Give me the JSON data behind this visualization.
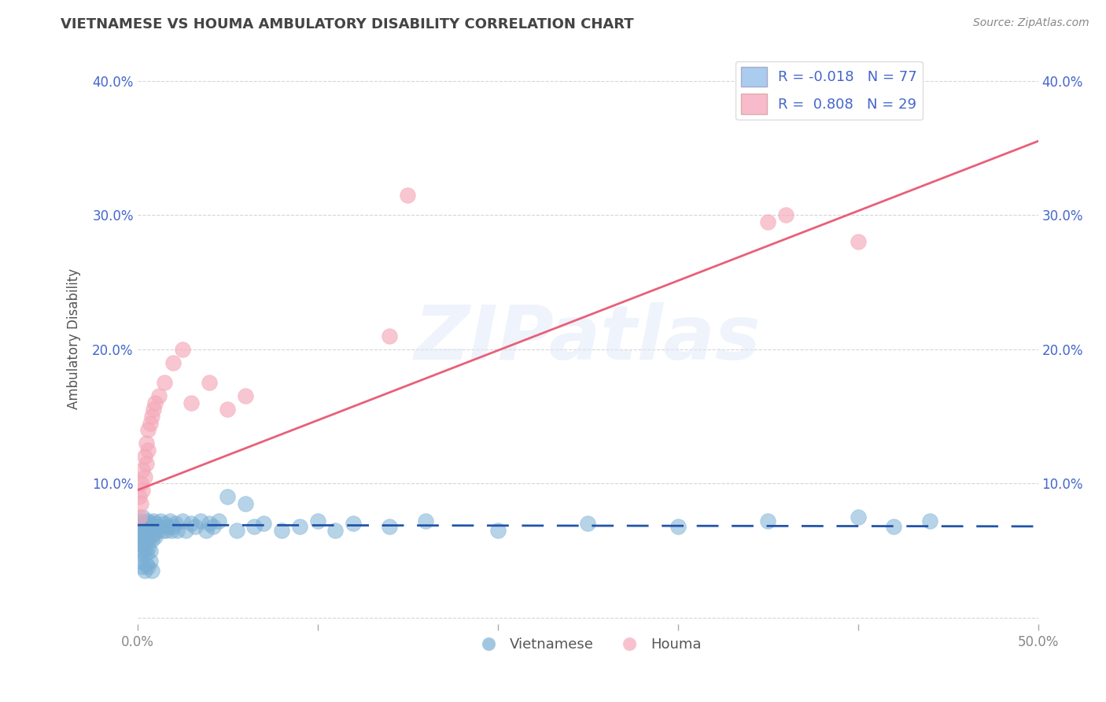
{
  "title": "VIETNAMESE VS HOUMA AMBULATORY DISABILITY CORRELATION CHART",
  "source": "Source: ZipAtlas.com",
  "ylabel": "Ambulatory Disability",
  "xlim": [
    0,
    0.5
  ],
  "ylim": [
    -0.005,
    0.42
  ],
  "xticks": [
    0.0,
    0.1,
    0.2,
    0.3,
    0.4,
    0.5
  ],
  "yticks": [
    0.0,
    0.1,
    0.2,
    0.3,
    0.4
  ],
  "xtick_labels_show": [
    "0.0%",
    "",
    "",
    "",
    "",
    "50.0%"
  ],
  "ytick_labels_left": [
    "",
    "10.0%",
    "20.0%",
    "30.0%",
    "40.0%"
  ],
  "ytick_labels_right": [
    "",
    "10.0%",
    "20.0%",
    "30.0%",
    "40.0%"
  ],
  "watermark": "ZIPatlas",
  "legend_R_vietnamese": "-0.018",
  "legend_N_vietnamese": "77",
  "legend_R_houma": "0.808",
  "legend_N_houma": "29",
  "blue_scatter_color": "#7BAFD4",
  "pink_scatter_color": "#F4A8B8",
  "blue_line_color": "#2255AA",
  "pink_line_color": "#E8607A",
  "grid_color": "#CCCCCC",
  "legend_text_color": "#4466CC",
  "title_color": "#444444",
  "source_color": "#888888",
  "background_color": "#FFFFFF",
  "watermark_color": "#E0E8F8",
  "tick_label_color": "#4466CC",
  "xtick_label_color": "#888888",
  "blue_patch_color": "#AACCEE",
  "pink_patch_color": "#F8BBCC",
  "vietnamese_x": [
    0.001,
    0.001,
    0.001,
    0.001,
    0.002,
    0.002,
    0.002,
    0.002,
    0.003,
    0.003,
    0.003,
    0.003,
    0.004,
    0.004,
    0.004,
    0.005,
    0.005,
    0.005,
    0.006,
    0.006,
    0.006,
    0.007,
    0.007,
    0.007,
    0.008,
    0.008,
    0.009,
    0.009,
    0.01,
    0.01,
    0.011,
    0.012,
    0.013,
    0.014,
    0.015,
    0.016,
    0.017,
    0.018,
    0.019,
    0.02,
    0.021,
    0.022,
    0.025,
    0.027,
    0.03,
    0.032,
    0.035,
    0.038,
    0.04,
    0.042,
    0.045,
    0.05,
    0.055,
    0.06,
    0.065,
    0.07,
    0.08,
    0.09,
    0.1,
    0.11,
    0.12,
    0.14,
    0.16,
    0.2,
    0.25,
    0.3,
    0.35,
    0.4,
    0.42,
    0.44,
    0.002,
    0.003,
    0.004,
    0.005,
    0.006,
    0.007,
    0.008
  ],
  "vietnamese_y": [
    0.065,
    0.07,
    0.058,
    0.055,
    0.072,
    0.06,
    0.068,
    0.05,
    0.075,
    0.065,
    0.058,
    0.048,
    0.07,
    0.062,
    0.052,
    0.068,
    0.058,
    0.048,
    0.072,
    0.062,
    0.052,
    0.07,
    0.06,
    0.05,
    0.068,
    0.058,
    0.072,
    0.062,
    0.07,
    0.06,
    0.065,
    0.068,
    0.072,
    0.065,
    0.07,
    0.065,
    0.068,
    0.072,
    0.065,
    0.068,
    0.07,
    0.065,
    0.072,
    0.065,
    0.07,
    0.068,
    0.072,
    0.065,
    0.07,
    0.068,
    0.072,
    0.09,
    0.065,
    0.085,
    0.068,
    0.07,
    0.065,
    0.068,
    0.072,
    0.065,
    0.07,
    0.068,
    0.072,
    0.065,
    0.07,
    0.068,
    0.072,
    0.075,
    0.068,
    0.072,
    0.042,
    0.038,
    0.035,
    0.04,
    0.038,
    0.042,
    0.035
  ],
  "houma_x": [
    0.001,
    0.001,
    0.002,
    0.002,
    0.003,
    0.003,
    0.004,
    0.004,
    0.005,
    0.005,
    0.006,
    0.006,
    0.007,
    0.008,
    0.009,
    0.01,
    0.012,
    0.015,
    0.02,
    0.025,
    0.03,
    0.04,
    0.05,
    0.06,
    0.14,
    0.15,
    0.35,
    0.36,
    0.4
  ],
  "houma_y": [
    0.09,
    0.075,
    0.1,
    0.085,
    0.11,
    0.095,
    0.12,
    0.105,
    0.13,
    0.115,
    0.14,
    0.125,
    0.145,
    0.15,
    0.155,
    0.16,
    0.165,
    0.175,
    0.19,
    0.2,
    0.16,
    0.175,
    0.155,
    0.165,
    0.21,
    0.315,
    0.295,
    0.3,
    0.28
  ],
  "blue_trend_x": [
    0.0,
    0.5
  ],
  "blue_trend_y": [
    0.069,
    0.068
  ],
  "pink_trend_x": [
    0.0,
    0.5
  ],
  "pink_trend_y": [
    0.095,
    0.355
  ]
}
